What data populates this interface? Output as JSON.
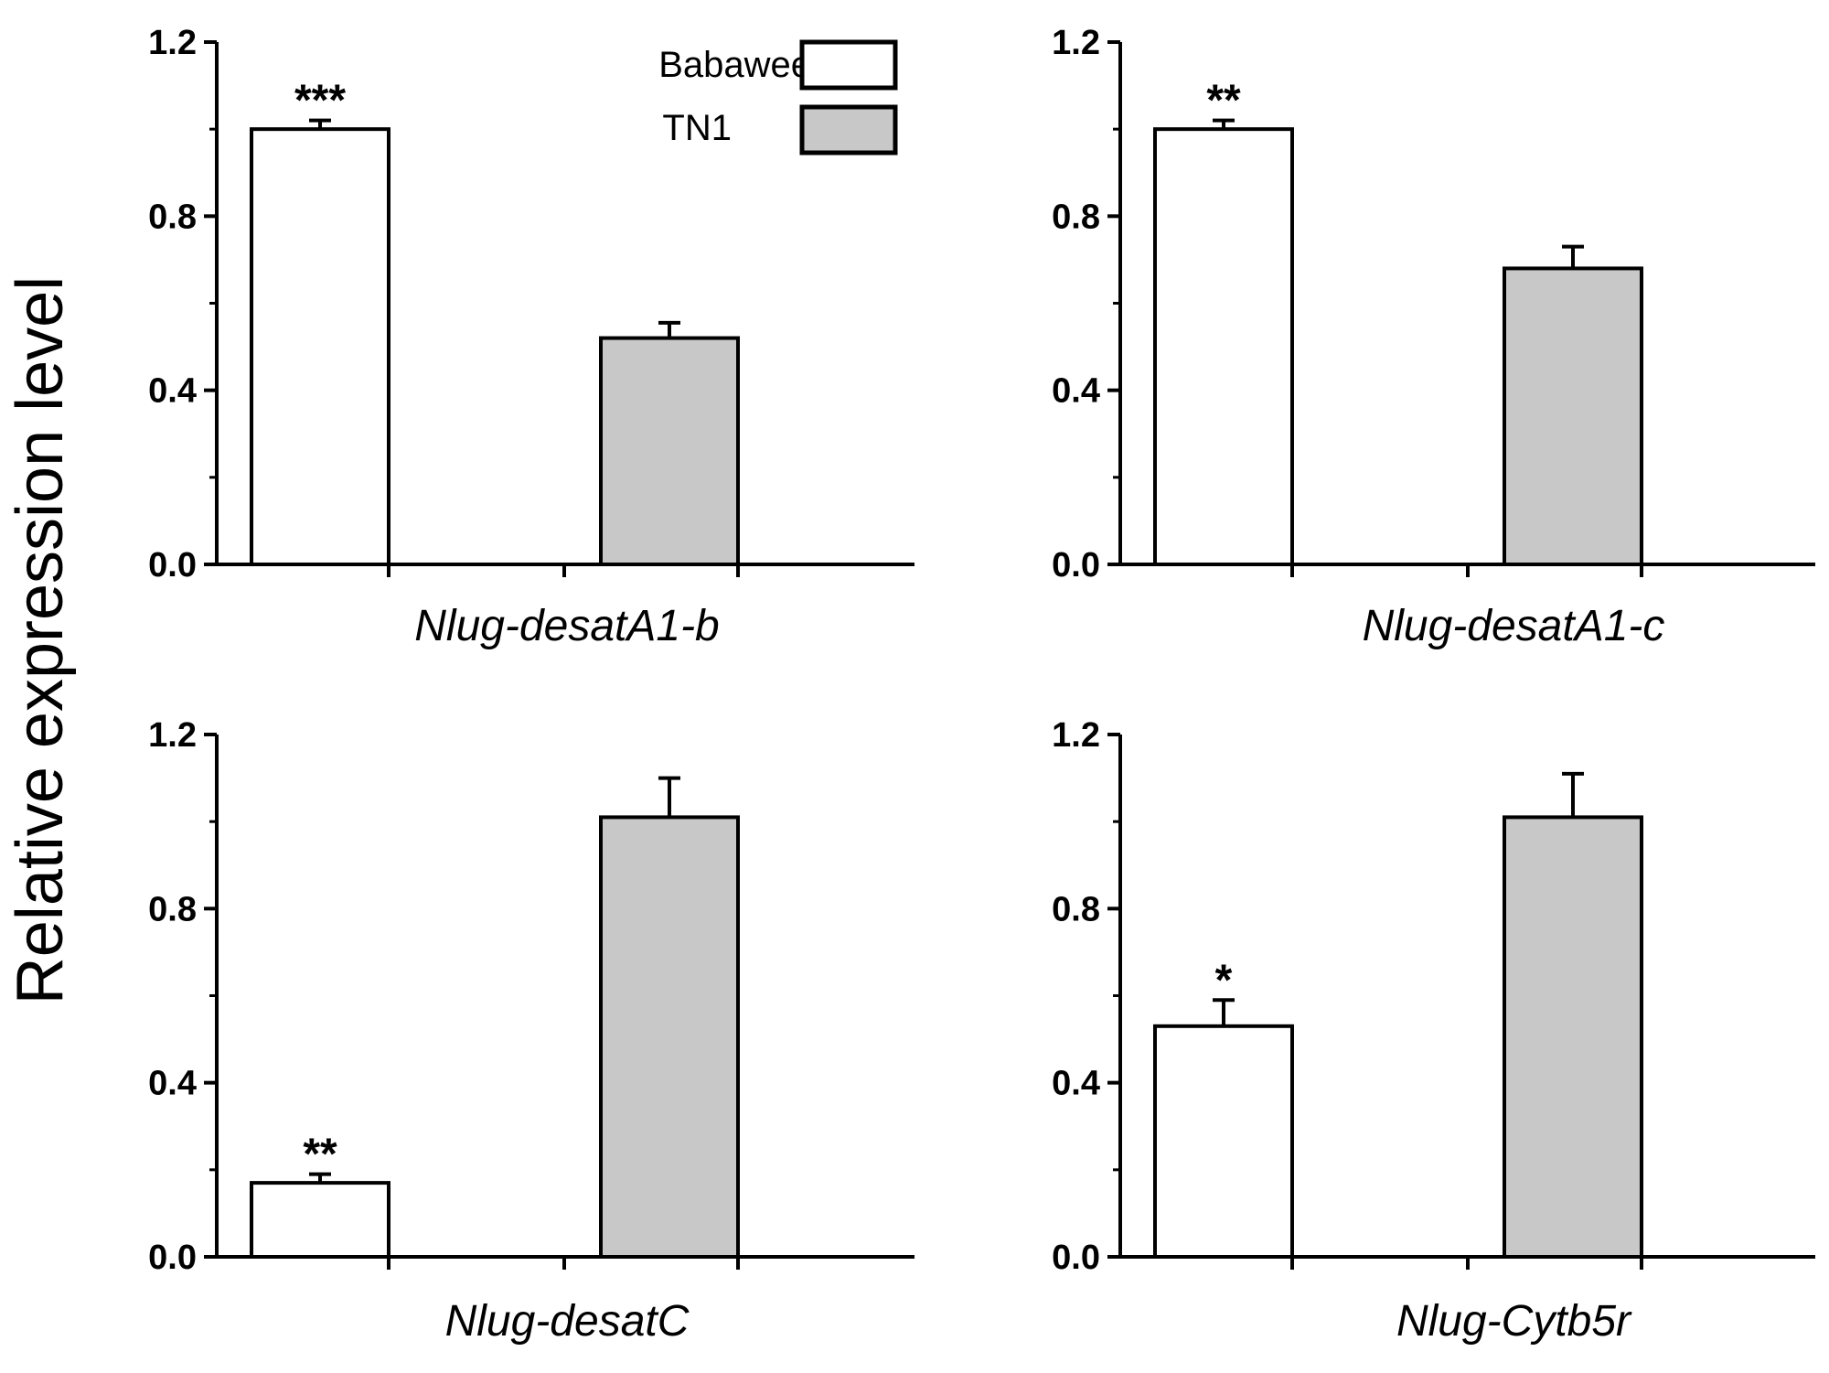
{
  "figure": {
    "ylabel": "Relative expression level",
    "legend": [
      {
        "name": "Babawee",
        "color": "#ffffff"
      },
      {
        "name": "TN1",
        "color": "#c8c8c8"
      }
    ]
  },
  "chart_data": [
    {
      "type": "bar",
      "title": "",
      "xlabel": "Nlug-desatA1-b",
      "ylabel": "Relative expression level",
      "ylim": [
        0,
        1.2
      ],
      "yticks": [
        "0.0",
        "0.4",
        "0.8",
        "1.2"
      ],
      "series": [
        {
          "name": "Babawee",
          "values": [
            1.0
          ],
          "error": [
            0.02
          ],
          "significance": "***"
        },
        {
          "name": "TN1",
          "values": [
            0.52
          ],
          "error": [
            0.035
          ],
          "significance": ""
        }
      ]
    },
    {
      "type": "bar",
      "title": "",
      "xlabel": "Nlug-desatA1-c",
      "ylabel": "Relative expression level",
      "ylim": [
        0,
        1.2
      ],
      "yticks": [
        "0.0",
        "0.4",
        "0.8",
        "1.2"
      ],
      "series": [
        {
          "name": "Babawee",
          "values": [
            1.0
          ],
          "error": [
            0.02
          ],
          "significance": "**"
        },
        {
          "name": "TN1",
          "values": [
            0.68
          ],
          "error": [
            0.05
          ],
          "significance": ""
        }
      ]
    },
    {
      "type": "bar",
      "title": "",
      "xlabel": "Nlug-desatC",
      "ylabel": "Relative expression level",
      "ylim": [
        0,
        1.2
      ],
      "yticks": [
        "0.0",
        "0.4",
        "0.8",
        "1.2"
      ],
      "series": [
        {
          "name": "Babawee",
          "values": [
            0.17
          ],
          "error": [
            0.02
          ],
          "significance": "**"
        },
        {
          "name": "TN1",
          "values": [
            1.01
          ],
          "error": [
            0.09
          ],
          "significance": ""
        }
      ]
    },
    {
      "type": "bar",
      "title": "",
      "xlabel": "Nlug-Cytb5r",
      "ylabel": "Relative expression level",
      "ylim": [
        0,
        1.2
      ],
      "yticks": [
        "0.0",
        "0.4",
        "0.8",
        "1.2"
      ],
      "series": [
        {
          "name": "Babawee",
          "values": [
            0.53
          ],
          "error": [
            0.06
          ],
          "significance": "*"
        },
        {
          "name": "TN1",
          "values": [
            1.01
          ],
          "error": [
            0.1
          ],
          "significance": ""
        }
      ]
    }
  ]
}
